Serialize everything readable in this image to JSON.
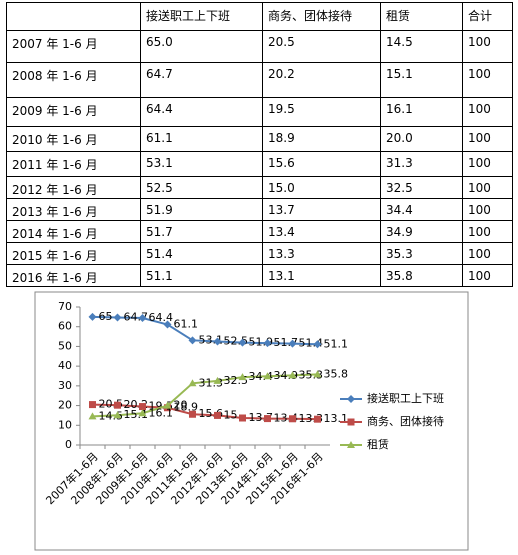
{
  "table": {
    "columns": [
      "接送职工上下班",
      "商务、团体接待",
      "租赁",
      "合计"
    ],
    "rows": [
      [
        "2007 年 1-6 月",
        "65.0",
        "20.5",
        "14.5",
        "100"
      ],
      [
        "2008 年 1-6 月",
        "64.7",
        "20.2",
        "15.1",
        "100"
      ],
      [
        "2009 年 1-6 月",
        "64.4",
        "19.5",
        "16.1",
        "100"
      ],
      [
        "2010 年 1-6 月",
        "61.1",
        "18.9",
        "20.0",
        "100"
      ],
      [
        "2011 年 1-6 月",
        "53.1",
        "15.6",
        "31.3",
        "100"
      ],
      [
        "2012 年 1-6 月",
        "52.5",
        "15.0",
        "32.5",
        "100"
      ],
      [
        "2013 年 1-6 月",
        "51.9",
        "13.7",
        "34.4",
        "100"
      ],
      [
        "2014 年 1-6 月",
        "51.7",
        "13.4",
        "34.9",
        "100"
      ],
      [
        "2015 年 1-6 月",
        "51.4",
        "13.3",
        "35.3",
        "100"
      ],
      [
        "2016 年 1-6 月",
        "51.1",
        "13.1",
        "35.8",
        "100"
      ]
    ]
  },
  "chart_data": {
    "type": "line",
    "categories": [
      "2007年1-6月",
      "2008年1-6月",
      "2009年1-6月",
      "2010年1-6月",
      "2011年1-6月",
      "2012年1-6月",
      "2013年1-6月",
      "2014年1-6月",
      "2015年1-6月",
      "2016年1-6月"
    ],
    "series": [
      {
        "name": "接送职工上下班",
        "color": "#4a7ebb",
        "marker": "diamond",
        "values": [
          65,
          64.7,
          64.4,
          61.1,
          53.1,
          52.5,
          51.9,
          51.7,
          51.4,
          51.1
        ]
      },
      {
        "name": "商务、团体接待",
        "color": "#be4b48",
        "marker": "square",
        "values": [
          20.5,
          20.2,
          19.5,
          18.9,
          15.6,
          15,
          13.7,
          13.4,
          13.3,
          13.1
        ]
      },
      {
        "name": "租赁",
        "color": "#98b954",
        "marker": "triangle",
        "values": [
          14.5,
          15.1,
          16.1,
          20,
          31.3,
          32.5,
          34.4,
          34.9,
          35.3,
          35.8
        ]
      }
    ],
    "ylim": [
      0,
      70
    ],
    "yticks": [
      0,
      10,
      20,
      30,
      40,
      50,
      60,
      70
    ],
    "grid": false,
    "legend": "right"
  }
}
